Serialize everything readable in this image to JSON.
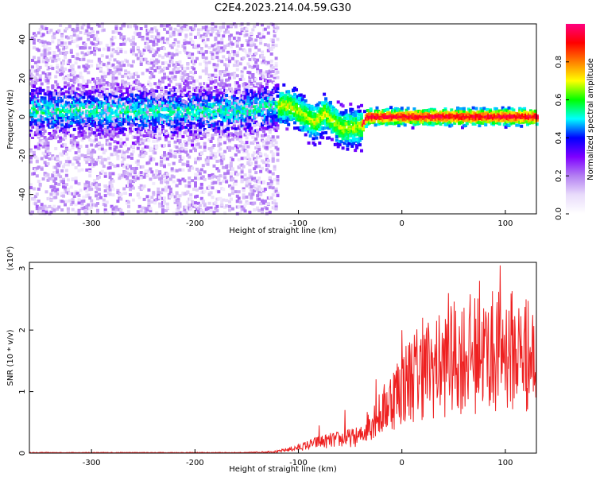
{
  "title": "C2E4.2023.214.04.59.G30",
  "chart_data": [
    {
      "type": "heatmap",
      "xlabel": "Height of straight line (km)",
      "ylabel": "Frequency (Hz)",
      "xlim": [
        -360,
        130
      ],
      "ylim": [
        -50,
        48
      ],
      "x_ticks": [
        -300,
        -200,
        -100,
        0,
        100
      ],
      "y_ticks": [
        -40,
        -20,
        0,
        20,
        40
      ],
      "colorbar": {
        "label": "Normalized spectral amplitude",
        "range": [
          0.0,
          1.0
        ],
        "ticks": [
          "0.0",
          "0.2",
          "0.4",
          "0.6",
          "0.8"
        ],
        "colors": [
          "#ffffff",
          "#e9dcfb",
          "#b37ff2",
          "#7f00ff",
          "#0000ff",
          "#00ffff",
          "#00ff00",
          "#ffff00",
          "#ff7f00",
          "#ff0000",
          "#ff0080"
        ]
      },
      "ridge": {
        "x": [
          -360,
          -160,
          -130,
          -110,
          -85,
          -75,
          -60,
          -40,
          -35,
          -20,
          0,
          130
        ],
        "y": [
          3,
          3,
          5,
          6,
          -3,
          2,
          -6,
          -5,
          0,
          0,
          0,
          0
        ]
      },
      "grid": false
    },
    {
      "type": "line",
      "xlabel": "Height of straight line (km)",
      "ylabel": "SNR (10 * v/v)",
      "y_multiplier": "(x10⁴)",
      "xlim": [
        -360,
        130
      ],
      "ylim": [
        0,
        3.1
      ],
      "x_ticks": [
        -300,
        -200,
        -100,
        0,
        100
      ],
      "y_ticks": [
        0,
        1,
        2,
        3
      ],
      "color": "#ee2020",
      "envelope": {
        "x": [
          -360,
          -150,
          -120,
          -100,
          -80,
          -60,
          -40,
          -30,
          -20,
          -10,
          0,
          10,
          20,
          40,
          60,
          80,
          100,
          130
        ],
        "y": [
          0.01,
          0.01,
          0.03,
          0.1,
          0.2,
          0.25,
          0.3,
          0.6,
          0.7,
          1.0,
          1.2,
          1.4,
          1.5,
          1.6,
          1.8,
          1.8,
          1.9,
          1.7
        ]
      },
      "peaks": [
        {
          "x": -80,
          "y": 0.45
        },
        {
          "x": -55,
          "y": 0.7
        },
        {
          "x": -25,
          "y": 1.2
        },
        {
          "x": 0,
          "y": 2.0
        },
        {
          "x": 20,
          "y": 2.2
        },
        {
          "x": 45,
          "y": 2.6
        },
        {
          "x": 75,
          "y": 2.8
        },
        {
          "x": 95,
          "y": 3.05
        },
        {
          "x": 120,
          "y": 2.5
        }
      ],
      "grid": false
    }
  ]
}
